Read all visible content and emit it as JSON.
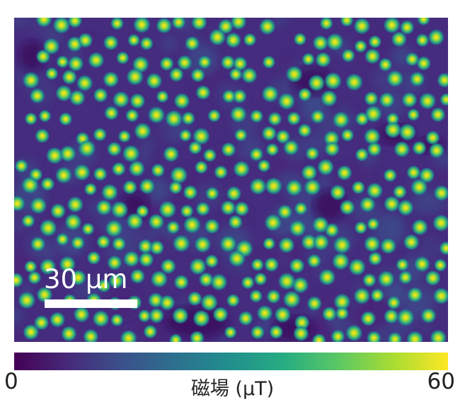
{
  "figure": {
    "colormap": [
      "#440154",
      "#472a7a",
      "#3b518b",
      "#2c718e",
      "#21908d",
      "#27ad81",
      "#5cc863",
      "#aadc32",
      "#fde725"
    ],
    "background_color": "#452c7e"
  },
  "scale_bar": {
    "label": "30 μm"
  },
  "colorbar": {
    "min_label": "0",
    "max_label": "60",
    "title": "磁場 (μT)"
  }
}
